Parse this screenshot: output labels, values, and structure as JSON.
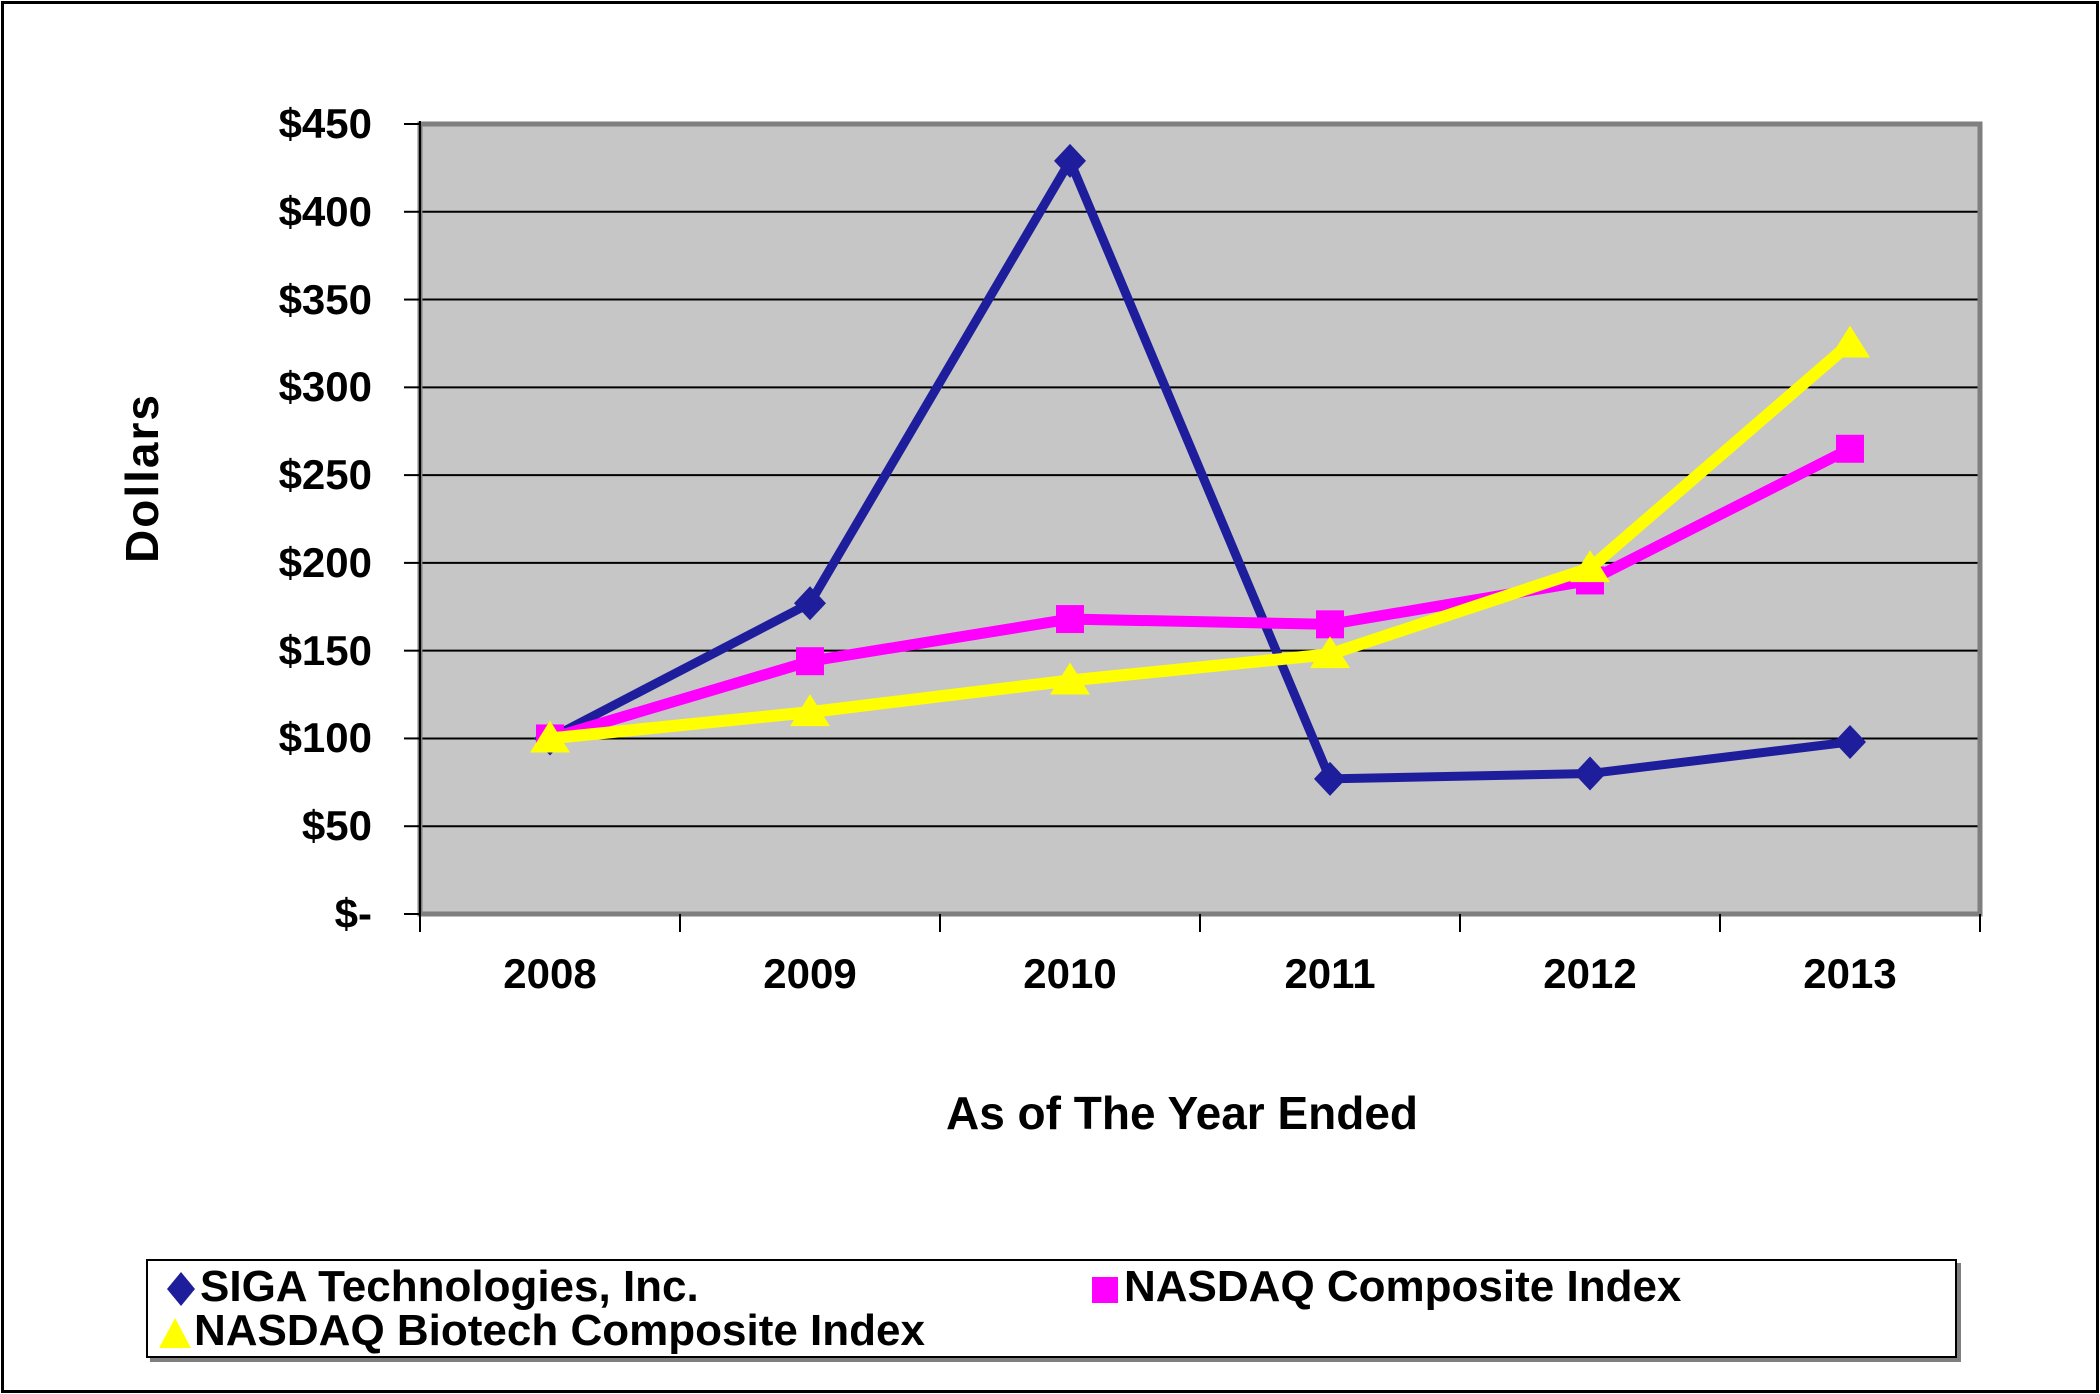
{
  "chart_data": {
    "type": "line",
    "title": "",
    "xlabel": "As of The Year Ended",
    "ylabel": "Dollars",
    "categories": [
      "2008",
      "2009",
      "2010",
      "2011",
      "2012",
      "2013"
    ],
    "y_tick_labels": [
      "$450",
      "$400",
      "$350",
      "$300",
      "$250",
      "$200",
      "$150",
      "$100",
      "$50",
      "$-"
    ],
    "ylim": [
      0,
      450
    ],
    "y_tick_step": 50,
    "grid": true,
    "legend_position": "bottom",
    "plot_bg_color": "#c6c6c6",
    "plot_border_color": "#7f7f7f",
    "gridline_color": "#000000",
    "axis_color": "#000000",
    "series": [
      {
        "name": "SIGA Technologies, Inc.",
        "color": "#1e1e9c",
        "marker": "diamond",
        "values": [
          100,
          177,
          429,
          77,
          80,
          98
        ]
      },
      {
        "name": "NASDAQ Composite Index",
        "color": "#ff00ff",
        "marker": "square",
        "values": [
          100,
          144,
          168,
          165,
          190,
          265
        ]
      },
      {
        "name": "NASDAQ Biotech Composite Index",
        "color": "#ffff00",
        "marker": "triangle",
        "values": [
          100,
          115,
          133,
          148,
          197,
          325
        ]
      }
    ]
  }
}
